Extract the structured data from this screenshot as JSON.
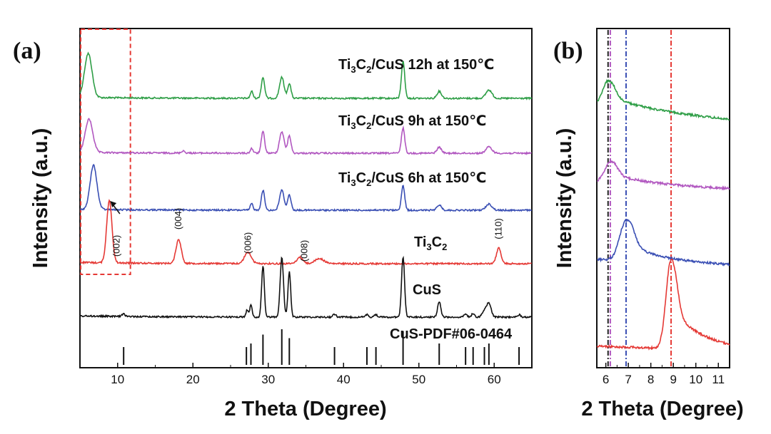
{
  "chart_data": [
    {
      "panel": "(a)",
      "type": "line",
      "xlabel": "2 Theta (Degree)",
      "ylabel": "Intensity (a.u.)",
      "xlim": [
        5,
        65
      ],
      "xticks": [
        10,
        20,
        30,
        40,
        50,
        60
      ],
      "yticks": "none (arbitrary units)",
      "series": [
        {
          "name_parts": [
            "Ti",
            "3",
            "C",
            "2",
            "/CuS 12h at 150℃"
          ],
          "color": "#2e9e46",
          "peaks": [
            {
              "x": 6.1,
              "rel": 0.95,
              "w": 0.5
            },
            {
              "x": 27.8,
              "rel": 0.15,
              "w": 0.18
            },
            {
              "x": 29.3,
              "rel": 0.45,
              "w": 0.22
            },
            {
              "x": 31.8,
              "rel": 0.45,
              "w": 0.3
            },
            {
              "x": 32.8,
              "rel": 0.32,
              "w": 0.22
            },
            {
              "x": 47.9,
              "rel": 0.8,
              "w": 0.22
            },
            {
              "x": 52.7,
              "rel": 0.15,
              "w": 0.3
            },
            {
              "x": 59.3,
              "rel": 0.18,
              "w": 0.4
            }
          ]
        },
        {
          "name_parts": [
            "Ti",
            "3",
            "C",
            "2",
            "/CuS 9h at 150℃"
          ],
          "color": "#b157c0",
          "peaks": [
            {
              "x": 6.2,
              "rel": 0.85,
              "w": 0.5
            },
            {
              "x": 18.7,
              "rel": 0.06,
              "w": 0.2
            },
            {
              "x": 27.8,
              "rel": 0.12,
              "w": 0.18
            },
            {
              "x": 29.3,
              "rel": 0.55,
              "w": 0.22
            },
            {
              "x": 31.8,
              "rel": 0.55,
              "w": 0.3
            },
            {
              "x": 32.8,
              "rel": 0.45,
              "w": 0.22
            },
            {
              "x": 47.9,
              "rel": 0.65,
              "w": 0.22
            },
            {
              "x": 52.7,
              "rel": 0.15,
              "w": 0.3
            },
            {
              "x": 59.3,
              "rel": 0.16,
              "w": 0.4
            }
          ]
        },
        {
          "name_parts": [
            "Ti",
            "3",
            "C",
            "2",
            "/CuS 6h at 150℃"
          ],
          "color": "#3a4fb4",
          "peaks": [
            {
              "x": 6.8,
              "rel": 1.0,
              "w": 0.45
            },
            {
              "x": 27.8,
              "rel": 0.15,
              "w": 0.18
            },
            {
              "x": 29.3,
              "rel": 0.45,
              "w": 0.22
            },
            {
              "x": 31.8,
              "rel": 0.45,
              "w": 0.3
            },
            {
              "x": 32.8,
              "rel": 0.35,
              "w": 0.22
            },
            {
              "x": 47.9,
              "rel": 0.55,
              "w": 0.22
            },
            {
              "x": 52.7,
              "rel": 0.12,
              "w": 0.3
            },
            {
              "x": 59.3,
              "rel": 0.14,
              "w": 0.4
            }
          ]
        },
        {
          "name_parts": [
            "Ti",
            "3",
            "C",
            "2"
          ],
          "color": "#e53935",
          "peaks": [
            {
              "x": 8.9,
              "rel": 1.0,
              "w": 0.35
            },
            {
              "x": 18.1,
              "rel": 0.38,
              "w": 0.35
            },
            {
              "x": 27.3,
              "rel": 0.18,
              "w": 0.45
            },
            {
              "x": 34.2,
              "rel": 0.1,
              "w": 0.4
            },
            {
              "x": 36.8,
              "rel": 0.08,
              "w": 0.6
            },
            {
              "x": 60.6,
              "rel": 0.25,
              "w": 0.3
            }
          ]
        },
        {
          "name_parts": [
            "CuS"
          ],
          "color": "#111111",
          "peaks": [
            {
              "x": 10.8,
              "rel": 0.04,
              "w": 0.2
            },
            {
              "x": 27.2,
              "rel": 0.12,
              "w": 0.15
            },
            {
              "x": 27.7,
              "rel": 0.2,
              "w": 0.15
            },
            {
              "x": 29.3,
              "rel": 0.85,
              "w": 0.18
            },
            {
              "x": 31.8,
              "rel": 0.98,
              "w": 0.22
            },
            {
              "x": 32.8,
              "rel": 0.75,
              "w": 0.18
            },
            {
              "x": 38.8,
              "rel": 0.05,
              "w": 0.2
            },
            {
              "x": 43.1,
              "rel": 0.04,
              "w": 0.2
            },
            {
              "x": 44.3,
              "rel": 0.04,
              "w": 0.2
            },
            {
              "x": 47.9,
              "rel": 1.0,
              "w": 0.2
            },
            {
              "x": 52.7,
              "rel": 0.25,
              "w": 0.22
            },
            {
              "x": 56.2,
              "rel": 0.05,
              "w": 0.2
            },
            {
              "x": 57.2,
              "rel": 0.06,
              "w": 0.2
            },
            {
              "x": 58.7,
              "rel": 0.1,
              "w": 0.3
            },
            {
              "x": 59.3,
              "rel": 0.22,
              "w": 0.3
            },
            {
              "x": 63.3,
              "rel": 0.04,
              "w": 0.2
            }
          ]
        }
      ],
      "reference": {
        "name": "CuS-PDF#06-0464",
        "color": "#111111",
        "sticks": [
          {
            "x": 10.8,
            "rel": 0.5
          },
          {
            "x": 27.1,
            "rel": 0.5
          },
          {
            "x": 27.7,
            "rel": 0.6
          },
          {
            "x": 29.3,
            "rel": 0.85
          },
          {
            "x": 31.8,
            "rel": 1.0
          },
          {
            "x": 32.8,
            "rel": 0.75
          },
          {
            "x": 38.8,
            "rel": 0.5
          },
          {
            "x": 43.1,
            "rel": 0.5
          },
          {
            "x": 44.3,
            "rel": 0.5
          },
          {
            "x": 47.9,
            "rel": 0.95
          },
          {
            "x": 52.7,
            "rel": 0.6
          },
          {
            "x": 56.2,
            "rel": 0.5
          },
          {
            "x": 57.2,
            "rel": 0.5
          },
          {
            "x": 58.7,
            "rel": 0.5
          },
          {
            "x": 59.3,
            "rel": 0.6
          },
          {
            "x": 63.3,
            "rel": 0.5
          }
        ]
      },
      "peak_labels": [
        {
          "text": "(002)",
          "x": 9.9
        },
        {
          "text": "(004)",
          "x": 18.1
        },
        {
          "text": "(006)",
          "x": 27.3
        },
        {
          "text": "(008)",
          "x": 34.8
        },
        {
          "text": "(110)",
          "x": 60.6
        }
      ],
      "highlight_box": {
        "x_range": [
          5,
          11.7
        ],
        "style": "red dashed",
        "color": "#e53935"
      }
    },
    {
      "panel": "(b)",
      "type": "line",
      "xlabel": "2 Theta (Degree)",
      "ylabel": "Intensity (a.u.)",
      "xlim": [
        5.6,
        11.5
      ],
      "xticks": [
        6,
        7,
        8,
        9,
        10,
        11
      ],
      "series": [
        {
          "color": "#2e9e46",
          "peak_x": 6.1,
          "peak_rel": 0.5,
          "slope": 0.55
        },
        {
          "color": "#b157c0",
          "peak_x": 6.2,
          "peak_rel": 0.45,
          "slope": 0.3
        },
        {
          "color": "#3a4fb4",
          "peak_x": 6.9,
          "peak_rel": 0.7,
          "slope": 0.2
        },
        {
          "color": "#e53935",
          "peak_x": 8.9,
          "peak_rel": 1.0,
          "slope": 0.1
        }
      ],
      "reference_lines": [
        {
          "x": 6.1,
          "color": "#222222"
        },
        {
          "x": 6.2,
          "color": "#b157c0"
        },
        {
          "x": 6.9,
          "color": "#3a4fb4"
        },
        {
          "x": 8.9,
          "color": "#e53935"
        }
      ]
    }
  ]
}
